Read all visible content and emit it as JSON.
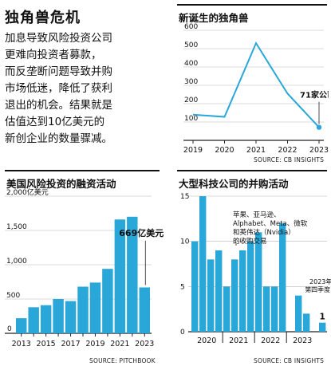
{
  "page": {
    "title": "独角兽危机",
    "intro_lines": [
      "加息导致风险投资公司",
      "更难向投资者募款，",
      "而反垄断问题导致并购",
      "市场低迷，降低了获利",
      "退出的机会。结果就是",
      "估值达到10亿美元的",
      "新创企业的数量骤减。"
    ]
  },
  "colors": {
    "bar": "#2aa7d9",
    "line": "#2aa7d9",
    "text": "#111111",
    "axis": "#222222"
  },
  "chart_data": [
    {
      "id": "unicorns",
      "type": "line",
      "title": "新诞生的独角兽",
      "x": [
        "2019",
        "2020",
        "2021",
        "2022",
        "2023"
      ],
      "y_values": [
        140,
        128,
        530,
        255,
        71
      ],
      "ylim": [
        0,
        600
      ],
      "yticks": [
        "0",
        "100",
        "200",
        "300",
        "400",
        "500",
        "600"
      ],
      "annotation": "71家公司",
      "source": "SOURCE: CB INSIGHTS"
    },
    {
      "id": "vc",
      "type": "bar",
      "title": "美国风险投资的融资活动",
      "y_unit_label": "2,000亿美元",
      "categories": [
        "2013",
        "2014",
        "2015",
        "2016",
        "2017",
        "2018",
        "2019",
        "2020",
        "2021",
        "2022",
        "2023"
      ],
      "values": [
        220,
        380,
        410,
        500,
        470,
        680,
        740,
        940,
        1660,
        1700,
        669
      ],
      "xtick_labels": [
        "2013",
        "2015",
        "2017",
        "2019",
        "2021",
        "2023"
      ],
      "ytick_labels": [
        "0",
        "500",
        "1,000",
        "1,500"
      ],
      "ylim": [
        0,
        2000
      ],
      "annotation": "669亿美元",
      "source": "SOURCE: PITCHBOOK"
    },
    {
      "id": "mna",
      "type": "bar",
      "title": "大型科技公司的并购活动",
      "values": [
        10,
        15,
        8,
        9,
        5,
        8,
        9,
        10,
        11,
        5,
        5,
        12,
        0,
        4,
        2,
        0,
        1
      ],
      "ylim": [
        0,
        15
      ],
      "ytick_labels": [
        "0",
        "5",
        "10",
        "15"
      ],
      "year_labels": [
        "2020",
        "2021",
        "2022",
        "2023"
      ],
      "annotation_lines": [
        "苹果、亚马逊、",
        "Alphabet、Meta、微软",
        "和英伟达（Nvidia）",
        "的收购交易"
      ],
      "quarter_note_lines": [
        "2023年",
        "第四季度"
      ],
      "last_value_label": "1",
      "source": "SOURCE: CB INSIGHTS"
    }
  ]
}
